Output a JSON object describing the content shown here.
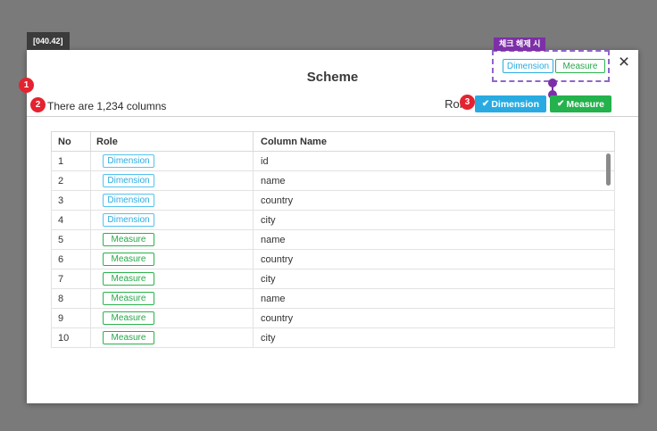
{
  "screen": {
    "code_tag": "[040.42]"
  },
  "modal": {
    "title": "Scheme",
    "subtitle": "There are 1,234 columns",
    "close_icon": "×"
  },
  "step_badges": [
    "1",
    "2",
    "3"
  ],
  "role_filter": {
    "label": "Role",
    "check_glyph": "✔",
    "buttons": [
      {
        "label": "Dimension",
        "checked": true,
        "color": "#29abe2"
      },
      {
        "label": "Measure",
        "checked": true,
        "color": "#24b24c"
      }
    ]
  },
  "annotation": {
    "callout_label": "체크 해제 시",
    "unchecked_buttons": [
      {
        "label": "Dimension",
        "color": "#29abe2"
      },
      {
        "label": "Measure",
        "color": "#2bb24c"
      }
    ]
  },
  "table": {
    "headers": [
      "No",
      "Role",
      "Column Name"
    ],
    "rows": [
      {
        "no": "1",
        "role": "Dimension",
        "column_name": "id"
      },
      {
        "no": "2",
        "role": "Dimension",
        "column_name": "name"
      },
      {
        "no": "3",
        "role": "Dimension",
        "column_name": "country"
      },
      {
        "no": "4",
        "role": "Dimension",
        "column_name": "city"
      },
      {
        "no": "5",
        "role": "Measure",
        "column_name": "name"
      },
      {
        "no": "6",
        "role": "Measure",
        "column_name": "country"
      },
      {
        "no": "7",
        "role": "Measure",
        "column_name": "city"
      },
      {
        "no": "8",
        "role": "Measure",
        "column_name": "name"
      },
      {
        "no": "9",
        "role": "Measure",
        "column_name": "country"
      },
      {
        "no": "10",
        "role": "Measure",
        "column_name": "city"
      }
    ]
  },
  "colors": {
    "background": "#7a7a7a",
    "accent_blue": "#29abe2",
    "accent_green": "#24b24c",
    "accent_red": "#e42330",
    "accent_purple": "#7d2fa8",
    "tag_dark": "#3b3b3b"
  }
}
